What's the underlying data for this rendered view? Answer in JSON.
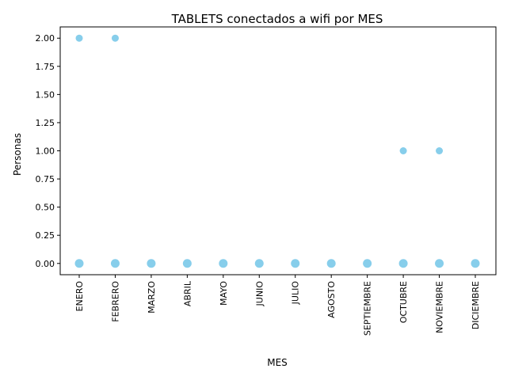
{
  "chart_data": {
    "type": "scatter",
    "title": "TABLETS conectados a wifi por MES",
    "xlabel": "MES",
    "ylabel": "Personas",
    "categories": [
      "ENERO",
      "FEBRERO",
      "MARZO",
      "ABRIL",
      "MAYO",
      "JUNIO",
      "JULIO",
      "AGOSTO",
      "SEPTIEMBRE",
      "OCTUBRE",
      "NOVIEMBRE",
      "DICIEMBRE"
    ],
    "points": [
      {
        "x": "ENERO",
        "y": 2
      },
      {
        "x": "ENERO",
        "y": 0
      },
      {
        "x": "FEBRERO",
        "y": 2
      },
      {
        "x": "FEBRERO",
        "y": 0
      },
      {
        "x": "MARZO",
        "y": 0
      },
      {
        "x": "ABRIL",
        "y": 0
      },
      {
        "x": "MAYO",
        "y": 0
      },
      {
        "x": "JUNIO",
        "y": 0
      },
      {
        "x": "JULIO",
        "y": 0
      },
      {
        "x": "AGOSTO",
        "y": 0
      },
      {
        "x": "SEPTIEMBRE",
        "y": 0
      },
      {
        "x": "OCTUBRE",
        "y": 1
      },
      {
        "x": "OCTUBRE",
        "y": 0
      },
      {
        "x": "NOVIEMBRE",
        "y": 1
      },
      {
        "x": "NOVIEMBRE",
        "y": 0
      },
      {
        "x": "DICIEMBRE",
        "y": 0
      }
    ],
    "yticks": [
      "0.00",
      "0.25",
      "0.50",
      "0.75",
      "1.00",
      "1.25",
      "1.50",
      "1.75",
      "2.00"
    ],
    "ylim": [
      -0.1,
      2.1
    ],
    "grid": false,
    "marker_color": "#87ceeb"
  }
}
